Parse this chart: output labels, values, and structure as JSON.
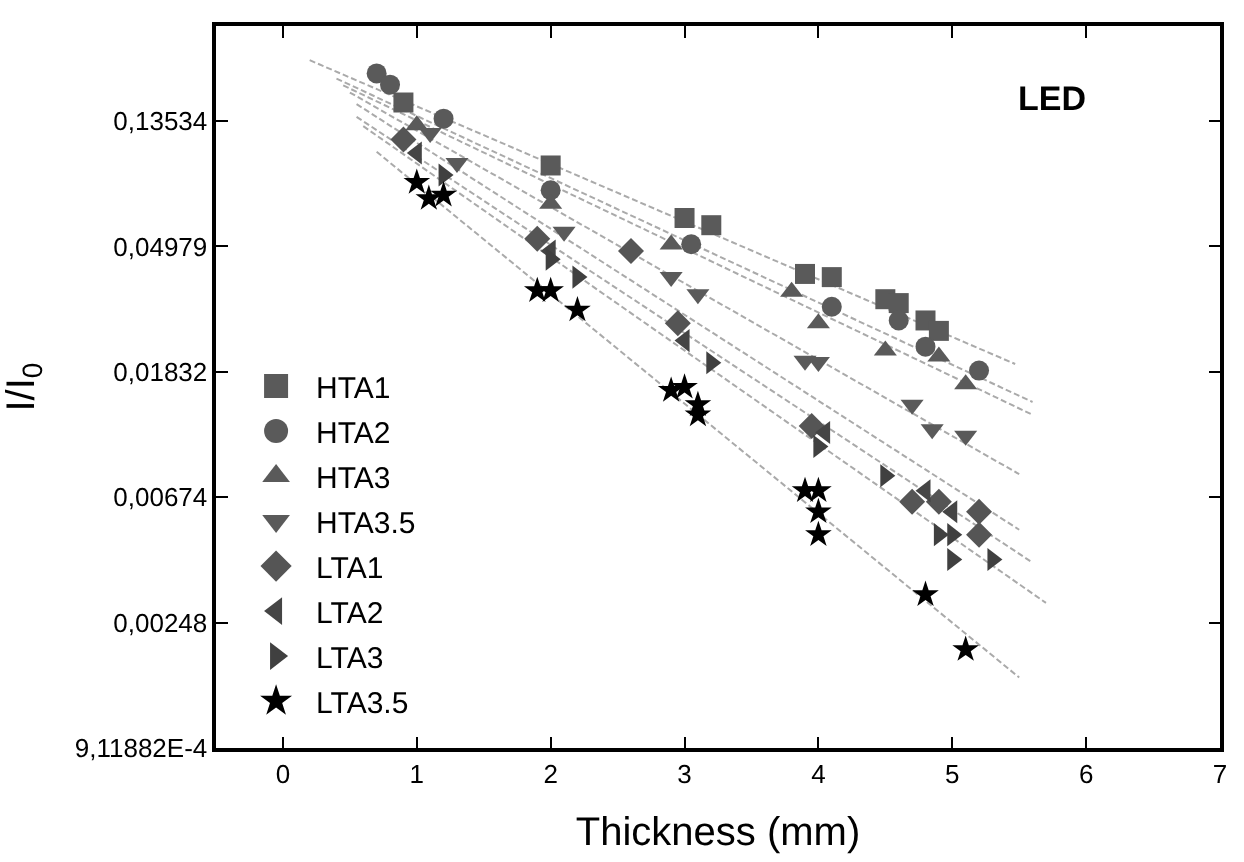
{
  "chart_data": {
    "type": "scatter",
    "xlabel": "Thickness (mm)",
    "ylabel": "I/I$_{0}$",
    "annotations": [
      "LED"
    ],
    "log": "y",
    "legend": "bottom left",
    "xlim": [
      -0.5,
      7
    ],
    "xticks": [
      0,
      1,
      2,
      3,
      4,
      5,
      6,
      7
    ],
    "ylim": [
      0.000911882,
      0.289
    ],
    "yticks": [
      {
        "value": 0.13534,
        "label": "0,13534"
      },
      {
        "value": 0.04979,
        "label": "0,04979"
      },
      {
        "value": 0.01832,
        "label": "0,01832"
      },
      {
        "value": 0.00674,
        "label": "0,00674"
      },
      {
        "value": 0.00248,
        "label": "0,00248"
      },
      {
        "value": 0.000911882,
        "label": "9,11882E-4"
      }
    ],
    "series": [
      {
        "type": "line",
        "line_style": "dashed",
        "marker": "none",
        "color": "#aaaaaa",
        "x": [
          0.2,
          5.47
        ],
        "values": [
          0.22,
          0.0195
        ]
      },
      {
        "type": "line",
        "line_style": "dashed",
        "marker": "none",
        "color": "#aaaaaa",
        "x": [
          0.4,
          5.6
        ],
        "values": [
          0.19,
          0.0144
        ]
      },
      {
        "type": "line",
        "line_style": "dashed",
        "marker": "none",
        "color": "#aaaaaa",
        "x": [
          0.45,
          5.6
        ],
        "values": [
          0.18,
          0.013
        ]
      },
      {
        "type": "line",
        "line_style": "dashed",
        "marker": "none",
        "color": "#aaaaaa",
        "x": [
          0.5,
          5.5
        ],
        "values": [
          0.17,
          0.0081
        ]
      },
      {
        "type": "line",
        "line_style": "dashed",
        "marker": "none",
        "color": "#aaaaaa",
        "x": [
          0.55,
          5.5
        ],
        "values": [
          0.155,
          0.0052
        ]
      },
      {
        "type": "line",
        "line_style": "dashed",
        "marker": "none",
        "color": "#aaaaaa",
        "x": [
          0.55,
          5.6
        ],
        "values": [
          0.14,
          0.004
        ]
      },
      {
        "type": "line",
        "line_style": "dashed",
        "marker": "none",
        "color": "#aaaaaa",
        "x": [
          0.6,
          5.7
        ],
        "values": [
          0.13,
          0.0029
        ]
      },
      {
        "type": "line",
        "line_style": "dashed",
        "marker": "none",
        "color": "#aaaaaa",
        "x": [
          0.7,
          5.5
        ],
        "values": [
          0.106,
          0.0016
        ]
      },
      {
        "name": "HTA1",
        "marker": "square",
        "color": "#5a5a5a",
        "x": [
          0.9,
          2.0,
          3.0,
          3.2,
          3.9,
          4.1,
          4.5,
          4.6,
          4.8,
          4.9
        ],
        "values": [
          0.157,
          0.095,
          0.0625,
          0.059,
          0.04,
          0.039,
          0.0327,
          0.0317,
          0.0276,
          0.0254
        ]
      },
      {
        "name": "HTA2",
        "marker": "circle",
        "color": "#5a5a5a",
        "x": [
          0.7,
          0.8,
          1.2,
          2.0,
          3.05,
          4.1,
          4.6,
          4.8,
          5.2
        ],
        "values": [
          0.198,
          0.181,
          0.138,
          0.078,
          0.0507,
          0.0308,
          0.0276,
          0.0224,
          0.0185
        ]
      },
      {
        "name": "HTA3",
        "marker": "triangle-up",
        "color": "#5a5a5a",
        "x": [
          1.0,
          2.0,
          2.9,
          3.8,
          4.0,
          4.5,
          4.9,
          5.1
        ],
        "values": [
          0.131,
          0.07,
          0.0506,
          0.0347,
          0.027,
          0.0217,
          0.0207,
          0.0166
        ]
      },
      {
        "name": "HTA3.5",
        "marker": "triangle-down",
        "color": "#5a5a5a",
        "x": [
          1.1,
          1.3,
          2.1,
          2.9,
          3.1,
          3.9,
          4.0,
          4.7,
          4.85,
          5.1
        ],
        "values": [
          0.123,
          0.097,
          0.056,
          0.039,
          0.034,
          0.02,
          0.0198,
          0.0141,
          0.0116,
          0.011
        ]
      },
      {
        "name": "LTA1",
        "marker": "diamond",
        "color": "#555555",
        "x": [
          0.9,
          1.9,
          2.6,
          2.95,
          3.95,
          4.7,
          4.9,
          5.2,
          5.2
        ],
        "values": [
          0.117,
          0.053,
          0.048,
          0.027,
          0.0119,
          0.0065,
          0.0065,
          0.006,
          0.005
        ]
      },
      {
        "name": "LTA2",
        "marker": "triangle-left",
        "color": "#454545",
        "x": [
          1.0,
          2.0,
          3.0,
          4.05,
          4.8,
          5.0
        ],
        "values": [
          0.105,
          0.048,
          0.0235,
          0.0113,
          0.0071,
          0.006
        ]
      },
      {
        "name": "LTA3",
        "marker": "triangle-right",
        "color": "#404040",
        "x": [
          1.2,
          2.0,
          2.2,
          3.2,
          4.0,
          4.5,
          4.9,
          5.0,
          5.0,
          5.3
        ],
        "values": [
          0.088,
          0.045,
          0.039,
          0.0197,
          0.0101,
          0.008,
          0.005,
          0.005,
          0.0041,
          0.0041
        ]
      },
      {
        "name": "LTA3.5",
        "marker": "star",
        "color": "#000000",
        "x": [
          1.0,
          1.09,
          1.2,
          1.9,
          2.0,
          2.2,
          2.9,
          3.0,
          3.1,
          3.1,
          3.9,
          4.0,
          4.0,
          4.0,
          4.8,
          5.1
        ],
        "values": [
          0.083,
          0.073,
          0.075,
          0.035,
          0.035,
          0.03,
          0.0158,
          0.0162,
          0.0141,
          0.013,
          0.0071,
          0.0071,
          0.006,
          0.005,
          0.0031,
          0.002
        ]
      }
    ]
  }
}
